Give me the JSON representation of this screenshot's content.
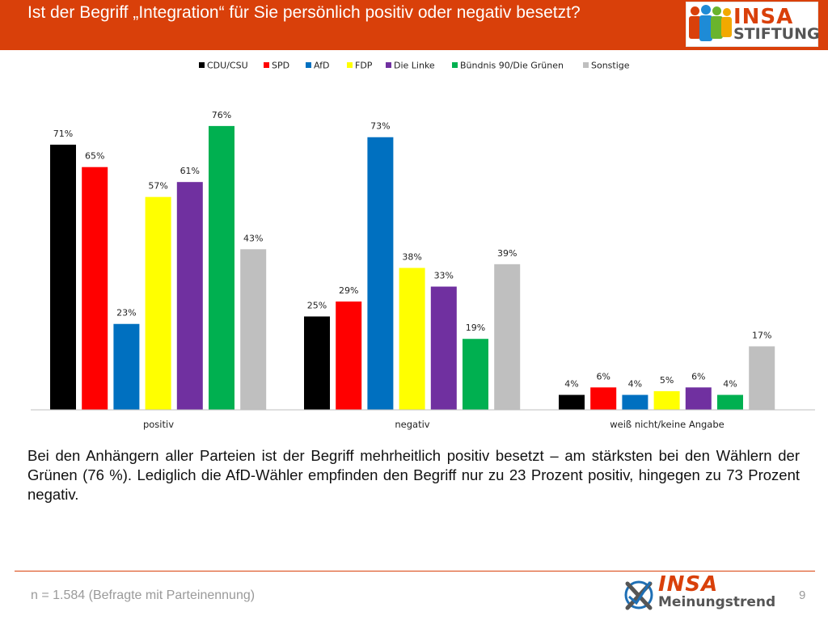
{
  "header": {
    "title": "Ist der Begriff „Integration“ für Sie persönlich positiv oder negativ besetzt?",
    "logo_word1": "INSA",
    "logo_word2": "STIFTUNG"
  },
  "chart_data": {
    "type": "bar",
    "categories": [
      "positiv",
      "negativ",
      "weiß nicht/keine Angabe"
    ],
    "series": [
      {
        "name": "CDU/CSU",
        "color": "#000000",
        "values": [
          71,
          25,
          4
        ]
      },
      {
        "name": "SPD",
        "color": "#ff0000",
        "values": [
          65,
          29,
          6
        ]
      },
      {
        "name": "AfD",
        "color": "#0070c0",
        "values": [
          23,
          73,
          4
        ]
      },
      {
        "name": "FDP",
        "color": "#ffff00",
        "values": [
          57,
          38,
          5
        ]
      },
      {
        "name": "Die Linke",
        "color": "#7030a0",
        "values": [
          61,
          33,
          6
        ]
      },
      {
        "name": "Bündnis 90/Die Grünen",
        "color": "#00b050",
        "values": [
          76,
          19,
          4
        ]
      },
      {
        "name": "Sonstige",
        "color": "#bfbfbf",
        "values": [
          43,
          39,
          17
        ]
      }
    ],
    "value_suffix": "%",
    "ylim": [
      0,
      80
    ],
    "legend_position": "top",
    "grid": false
  },
  "caption": "Bei den Anhängern aller Parteien ist der Begriff mehrheitlich positiv besetzt – am stärksten bei den Wählern der Grünen (76 %). Lediglich die AfD-Wähler empfinden den Begriff nur zu 23 Prozent positiv, hingegen zu 73 Prozent negativ.",
  "footer": {
    "sample": "n = 1.584 (Befragte mit Parteinennung)",
    "page_number": "9",
    "logo_word1": "INSA",
    "logo_word2": "Meinungstrend"
  }
}
